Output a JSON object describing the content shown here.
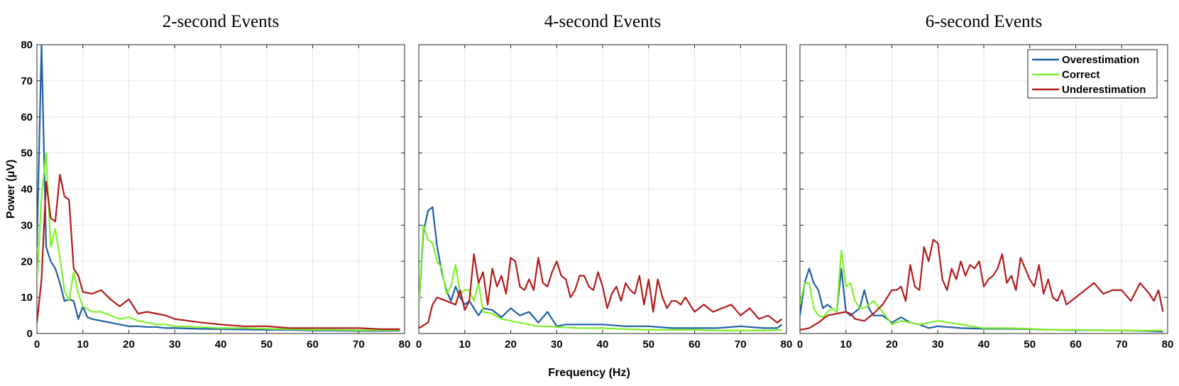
{
  "chart_data": {
    "type": "line",
    "xlabel": "Frequency (Hz)",
    "ylabel": "Power (μV)",
    "xlim": [
      0,
      80
    ],
    "ylim": [
      0,
      80
    ],
    "xticks": [
      0,
      10,
      20,
      30,
      40,
      50,
      60,
      70,
      80
    ],
    "yticks": [
      0,
      10,
      20,
      30,
      40,
      50,
      60,
      70,
      80
    ],
    "grid": true,
    "legend_position": "top-right of third panel",
    "legend": [
      {
        "name": "Overestimation",
        "color": "#1f5fa6"
      },
      {
        "name": "Correct",
        "color": "#7ef02a"
      },
      {
        "name": "Underestimation",
        "color": "#b31b1b"
      }
    ],
    "panels": [
      {
        "title": "2-second Events",
        "series": [
          {
            "name": "Overestimation",
            "color": "#1f5fa6",
            "x": [
              0,
              1,
              2,
              3,
              4,
              5,
              6,
              7,
              8,
              9,
              10,
              11,
              12,
              14,
              16,
              18,
              20,
              22,
              24,
              26,
              28,
              30,
              35,
              40,
              45,
              50,
              55,
              60,
              65,
              70,
              75,
              79
            ],
            "y": [
              24,
              80,
              24,
              20,
              18,
              14,
              9,
              9.5,
              9,
              4,
              7.5,
              4.5,
              4,
              3.5,
              3,
              2.5,
              2,
              2,
              1.8,
              1.8,
              1.5,
              1.5,
              1.3,
              1.2,
              1.1,
              1,
              1,
              0.8,
              0.8,
              0.7,
              0.7,
              0.8
            ]
          },
          {
            "name": "Correct",
            "color": "#7ef02a",
            "x": [
              0,
              1,
              2,
              3,
              4,
              5,
              6,
              7,
              8,
              9,
              10,
              12,
              14,
              16,
              18,
              20,
              22,
              24,
              26,
              28,
              30,
              35,
              40,
              45,
              50,
              55,
              60,
              65,
              70,
              75,
              79
            ],
            "y": [
              14,
              38,
              50,
              24,
              29,
              21,
              12,
              9,
              17,
              11,
              7.5,
              6,
              6,
              5,
              4,
              4.5,
              3.5,
              3,
              2.5,
              2.5,
              2,
              1.8,
              1.5,
              1.5,
              1.3,
              1.2,
              1,
              1,
              0.9,
              0.9,
              1
            ]
          },
          {
            "name": "Underestimation",
            "color": "#b31b1b",
            "x": [
              0,
              1,
              2,
              3,
              4,
              5,
              6,
              7,
              8,
              9,
              10,
              12,
              14,
              16,
              18,
              20,
              22,
              24,
              26,
              28,
              30,
              33,
              36,
              40,
              45,
              50,
              55,
              60,
              65,
              70,
              75,
              79
            ],
            "y": [
              3,
              15,
              42,
              32,
              31,
              44,
              38,
              37,
              18,
              16,
              11.5,
              11,
              12,
              9.5,
              7.5,
              9.5,
              5.5,
              6,
              5.5,
              5,
              4,
              3.5,
              3,
              2.5,
              2,
              2,
              1.5,
              1.5,
              1.5,
              1.5,
              1.2,
              1.2
            ]
          }
        ]
      },
      {
        "title": "4-second Events",
        "series": [
          {
            "name": "Overestimation",
            "color": "#1f5fa6",
            "x": [
              0,
              1,
              2,
              3,
              4,
              5,
              6,
              7,
              8,
              9,
              10,
              11,
              12,
              13,
              14,
              16,
              18,
              20,
              22,
              24,
              26,
              28,
              30,
              32,
              35,
              40,
              45,
              50,
              55,
              60,
              65,
              70,
              75,
              78,
              79
            ],
            "y": [
              7,
              28,
              34,
              35,
              24,
              17,
              12,
              9,
              13,
              10,
              8,
              9,
              7,
              5,
              7,
              6.5,
              4.5,
              7,
              5,
              6,
              3,
              6,
              2,
              2.5,
              2.5,
              2.5,
              2,
              2,
              1.5,
              1.5,
              1.5,
              2,
              1.5,
              1.5,
              2.5
            ]
          },
          {
            "name": "Correct",
            "color": "#7ef02a",
            "x": [
              0,
              1,
              2,
              3,
              4,
              5,
              6,
              7,
              8,
              9,
              10,
              11,
              12,
              13,
              14,
              16,
              18,
              20,
              22,
              24,
              26,
              28,
              30,
              35,
              40,
              45,
              50,
              55,
              60,
              65,
              70,
              75,
              79
            ],
            "y": [
              7,
              30,
              26,
              25,
              20,
              18,
              11,
              13,
              19,
              11,
              12,
              12,
              9,
              14,
              6,
              5.5,
              4,
              3.5,
              3,
              2.5,
              2,
              2,
              1.8,
              1.5,
              1.5,
              1.2,
              1,
              1,
              1,
              0.8,
              0.8,
              0.8,
              1
            ]
          },
          {
            "name": "Underestimation",
            "color": "#b31b1b",
            "x": [
              0,
              2,
              3,
              4,
              5,
              6,
              8,
              9,
              10,
              11,
              12,
              13,
              14,
              15,
              16,
              17,
              18,
              19,
              20,
              21,
              22,
              23,
              24,
              25,
              26,
              27,
              28,
              29,
              30,
              31,
              32,
              33,
              34,
              35,
              36,
              37,
              38,
              39,
              40,
              41,
              42,
              43,
              44,
              45,
              46,
              47,
              48,
              49,
              50,
              51,
              52,
              53,
              54,
              55,
              56,
              57,
              58,
              60,
              62,
              64,
              66,
              68,
              70,
              72,
              74,
              76,
              78,
              79
            ],
            "y": [
              1.5,
              3,
              8,
              10,
              9.5,
              9,
              8,
              12,
              6.5,
              9,
              22,
              14,
              17,
              8,
              18,
              13,
              16,
              11,
              21,
              20,
              13,
              12,
              15,
              12,
              21,
              14,
              13,
              17,
              20,
              16,
              15,
              10,
              12,
              16,
              16,
              13,
              12,
              17,
              13,
              7,
              11,
              13,
              9,
              14,
              12,
              11,
              16,
              8,
              15,
              6,
              15,
              10,
              7,
              9,
              9,
              8,
              10,
              6,
              8,
              6,
              7,
              8,
              5,
              7,
              4,
              5,
              3,
              4
            ]
          }
        ]
      },
      {
        "title": "6-second Events",
        "series": [
          {
            "name": "Overestimation",
            "color": "#1f5fa6",
            "x": [
              0,
              1,
              2,
              3,
              4,
              5,
              6,
              7,
              8,
              9,
              10,
              11,
              12,
              13,
              14,
              15,
              16,
              18,
              20,
              22,
              24,
              26,
              28,
              30,
              35,
              40,
              45,
              50,
              55,
              60,
              65,
              70,
              75,
              79
            ],
            "y": [
              5,
              14,
              18,
              14,
              12,
              7,
              8,
              7,
              6,
              18,
              6,
              5,
              6,
              7,
              12,
              7,
              5,
              5,
              3,
              4.5,
              3,
              2.5,
              1.5,
              2,
              1.5,
              1.3,
              1.3,
              1.2,
              1,
              0.9,
              0.9,
              0.8,
              0.7,
              0.5
            ]
          },
          {
            "name": "Correct",
            "color": "#7ef02a",
            "x": [
              0,
              1,
              2,
              3,
              4,
              5,
              6,
              7,
              8,
              9,
              10,
              11,
              12,
              13,
              14,
              16,
              18,
              20,
              22,
              24,
              26,
              28,
              30,
              35,
              40,
              45,
              50,
              55,
              60,
              65,
              70,
              75,
              79
            ],
            "y": [
              8,
              14,
              14,
              7,
              5,
              4.5,
              6,
              7,
              6,
              23,
              13,
              14,
              9,
              7,
              7,
              9,
              6,
              2.5,
              3.5,
              3,
              2.5,
              3,
              3.5,
              2.5,
              1.5,
              1.5,
              1.3,
              1,
              1,
              0.9,
              0.8,
              0.8,
              0.8
            ]
          },
          {
            "name": "Underestimation",
            "color": "#b31b1b",
            "x": [
              0,
              2,
              4,
              6,
              8,
              10,
              11,
              12,
              14,
              16,
              18,
              20,
              21,
              22,
              23,
              24,
              25,
              26,
              27,
              28,
              29,
              30,
              31,
              32,
              33,
              34,
              35,
              36,
              37,
              38,
              39,
              40,
              41,
              42,
              43,
              44,
              45,
              46,
              47,
              48,
              49,
              50,
              51,
              52,
              53,
              54,
              55,
              56,
              57,
              58,
              60,
              62,
              64,
              66,
              68,
              70,
              72,
              74,
              76,
              77,
              78,
              79
            ],
            "y": [
              1,
              1.5,
              3,
              5,
              5.5,
              6,
              5.5,
              4,
              3.5,
              5.5,
              8,
              12,
              12,
              13,
              9,
              19,
              13,
              12,
              24,
              20,
              26,
              25,
              15,
              12,
              18,
              15,
              20,
              16,
              19,
              18,
              20,
              13,
              15,
              16,
              18,
              22,
              14,
              16,
              12,
              21,
              18,
              15,
              13,
              19,
              11,
              15,
              10,
              9,
              12,
              8,
              10,
              12,
              14,
              11,
              12,
              12,
              9,
              14,
              11,
              9,
              12,
              6
            ]
          }
        ]
      }
    ]
  }
}
